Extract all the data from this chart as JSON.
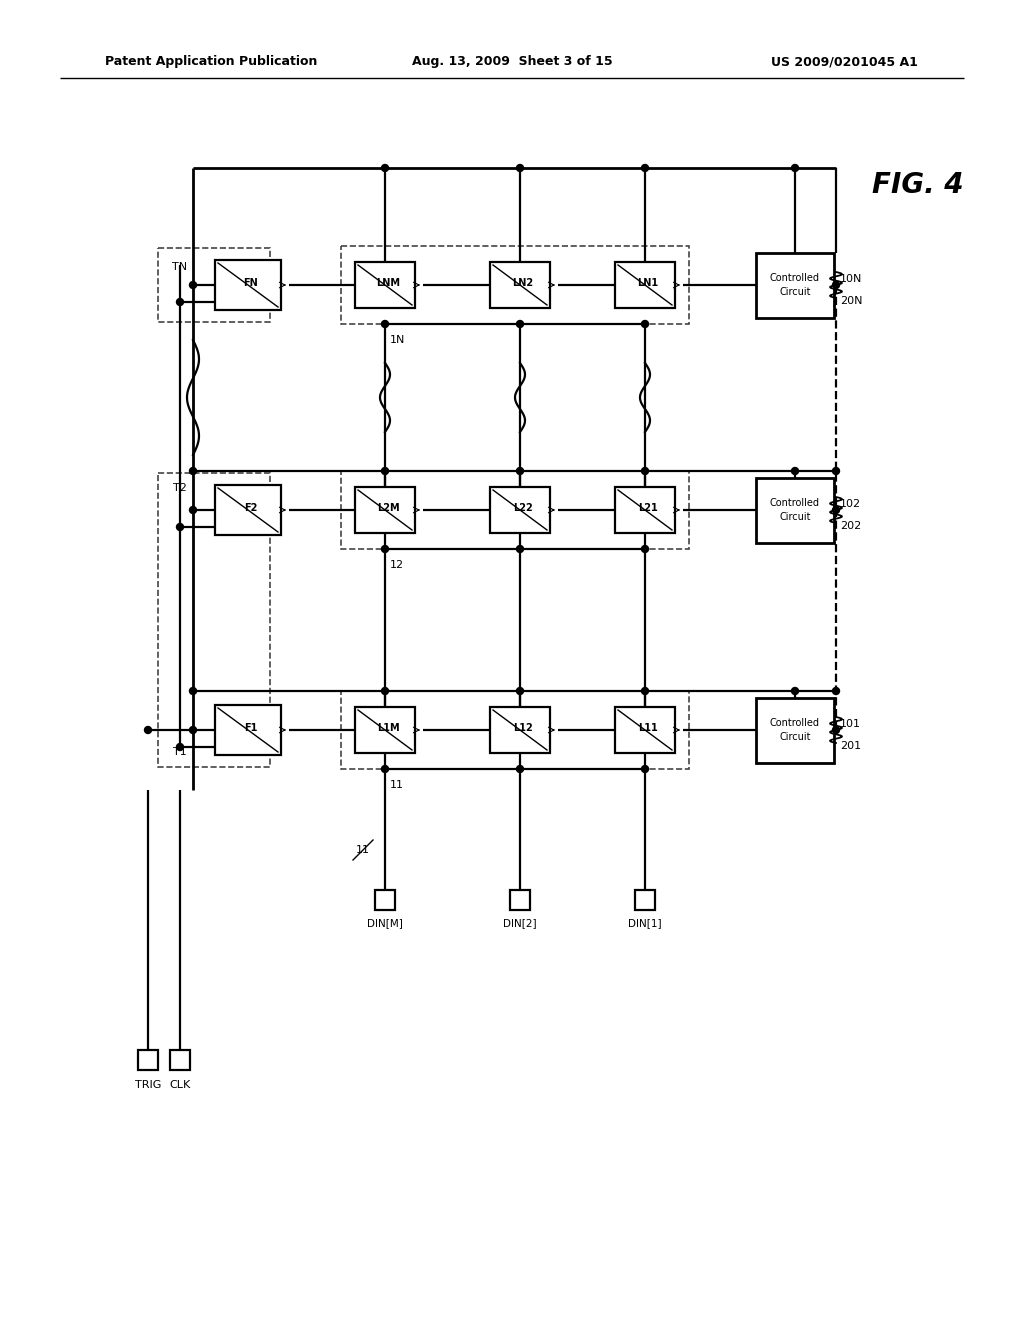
{
  "bg_color": "#ffffff",
  "header_left": "Patent Application Publication",
  "header_center": "Aug. 13, 2009  Sheet 3 of 15",
  "header_right": "US 2009/0201045 A1",
  "fig_label": "FIG. 4"
}
